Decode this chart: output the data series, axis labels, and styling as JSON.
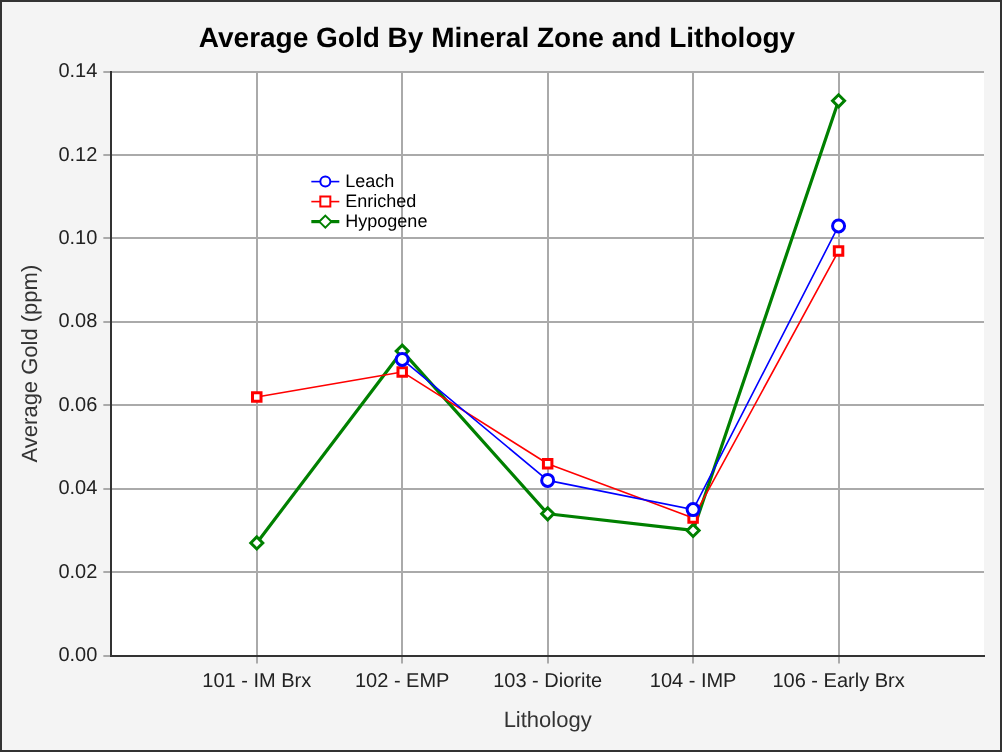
{
  "chart_data": {
    "type": "line",
    "title": "Average Gold By Mineral Zone and Lithology",
    "xlabel": "Lithology",
    "ylabel": "Average Gold (ppm)",
    "categories": [
      "101 - IM Brx",
      "102 - EMP",
      "103 - Diorite",
      "104 - IMP",
      "106 - Early Brx"
    ],
    "series": [
      {
        "name": "Leach",
        "color": "#0000ff",
        "marker": "circle",
        "values": [
          null,
          0.071,
          0.042,
          0.035,
          0.103
        ]
      },
      {
        "name": "Enriched",
        "color": "#ff0000",
        "marker": "square",
        "values": [
          0.062,
          0.068,
          0.046,
          0.033,
          0.097
        ]
      },
      {
        "name": "Hypogene",
        "color": "#008000",
        "marker": "diamond",
        "values": [
          0.027,
          0.073,
          0.034,
          0.03,
          0.133
        ]
      }
    ],
    "ylim": [
      0,
      0.14
    ],
    "yticks": [
      {
        "value": 0,
        "label": "0.00"
      },
      {
        "value": 0.02,
        "label": "0.02"
      },
      {
        "value": 0.04,
        "label": "0.04"
      },
      {
        "value": 0.06,
        "label": "0.06"
      },
      {
        "value": 0.08,
        "label": "0.08"
      },
      {
        "value": 0.1,
        "label": "0.10"
      },
      {
        "value": 0.12,
        "label": "0.12"
      },
      {
        "value": 0.14,
        "label": "0.14"
      }
    ],
    "grid": true,
    "legend": "top left",
    "line_style": "solid"
  }
}
